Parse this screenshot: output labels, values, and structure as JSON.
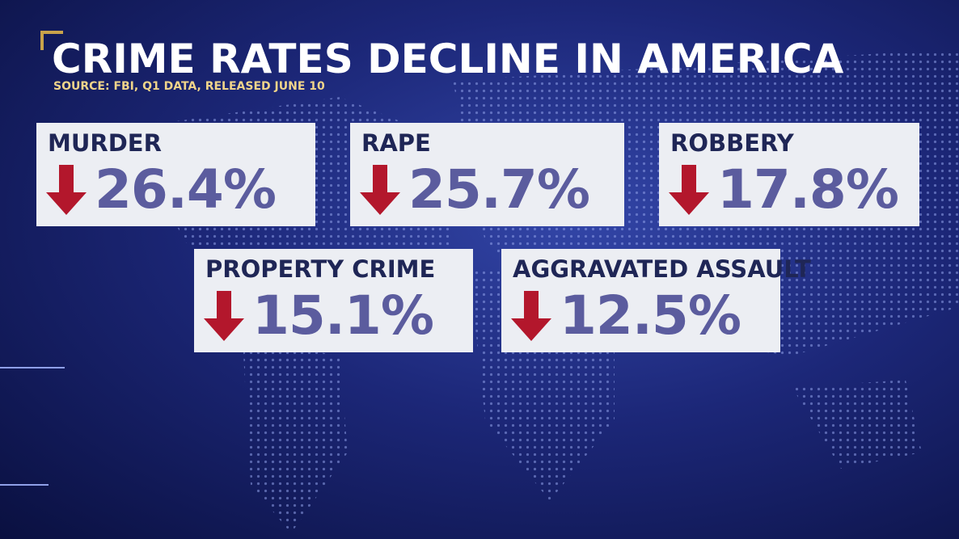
{
  "header": {
    "title": "CRIME RATES DECLINE IN AMERICA",
    "source": "SOURCE: FBI, Q1 DATA, RELEASED JUNE 10"
  },
  "cards": [
    {
      "label": "MURDER",
      "value": "26.4%"
    },
    {
      "label": "RAPE",
      "value": "25.7%"
    },
    {
      "label": "ROBBERY",
      "value": "17.8%"
    },
    {
      "label": "PROPERTY CRIME",
      "value": "15.1%"
    },
    {
      "label": "AGGRAVATED ASSAULT",
      "value": "12.5%"
    }
  ]
}
